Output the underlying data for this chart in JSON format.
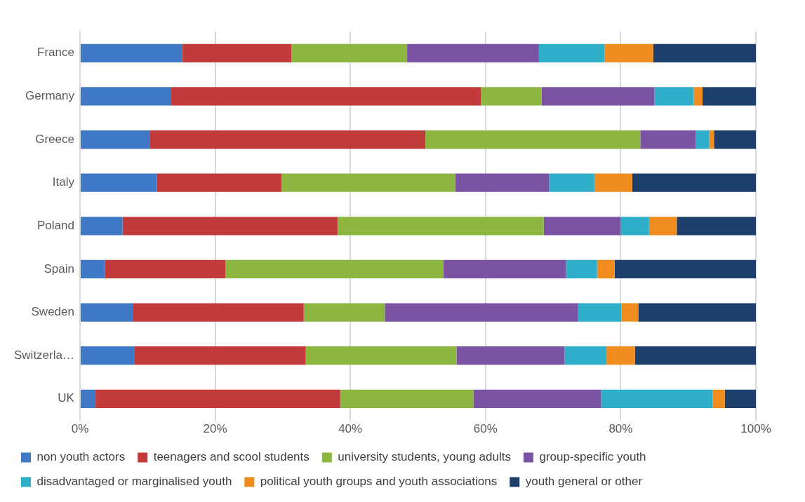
{
  "chart_data": {
    "type": "bar",
    "orientation": "horizontal",
    "stacked": true,
    "categories": [
      "France",
      "Germany",
      "Greece",
      "Italy",
      "Poland",
      "Spain",
      "Sweden",
      "Switzerla…",
      "UK"
    ],
    "series": [
      {
        "name": "non youth actors",
        "color": "#3f78c4",
        "values": [
          15.1,
          13.5,
          10.3,
          11.4,
          6.3,
          3.7,
          7.8,
          8.1,
          2.3
        ]
      },
      {
        "name": "teenagers and scool students",
        "color": "#c23a3a",
        "values": [
          16.2,
          45.8,
          40.8,
          18.4,
          31.8,
          17.8,
          25.3,
          25.3,
          36.2
        ]
      },
      {
        "name": "university students, young adults",
        "color": "#8cb640",
        "values": [
          17.1,
          9.0,
          31.8,
          25.7,
          30.5,
          32.3,
          12.0,
          22.3,
          19.7
        ]
      },
      {
        "name": "group-specific youth",
        "color": "#7b53a3",
        "values": [
          19.5,
          16.7,
          8.2,
          13.9,
          11.4,
          18.1,
          28.6,
          16.0,
          18.9
        ]
      },
      {
        "name": "disadvantaged or marginalised youth",
        "color": "#2eaec8",
        "values": [
          9.7,
          5.8,
          2.0,
          6.7,
          4.2,
          4.6,
          6.4,
          6.2,
          16.5
        ]
      },
      {
        "name": "political youth groups and youth associations",
        "color": "#f08b1d",
        "values": [
          7.2,
          1.3,
          0.7,
          5.6,
          4.1,
          2.6,
          2.5,
          4.2,
          1.8
        ]
      },
      {
        "name": "youth general or other",
        "color": "#1e3f6c",
        "values": [
          15.2,
          7.9,
          6.2,
          18.3,
          11.7,
          20.9,
          17.4,
          17.9,
          4.6
        ]
      }
    ],
    "xlim": [
      0,
      100
    ],
    "xticks": [
      {
        "value": 0,
        "label": "0%"
      },
      {
        "value": 20,
        "label": "20%"
      },
      {
        "value": 40,
        "label": "40%"
      },
      {
        "value": 60,
        "label": "60%"
      },
      {
        "value": 80,
        "label": "80%"
      },
      {
        "value": 100,
        "label": "100%"
      }
    ],
    "grid": "x",
    "legend": "bottom"
  }
}
